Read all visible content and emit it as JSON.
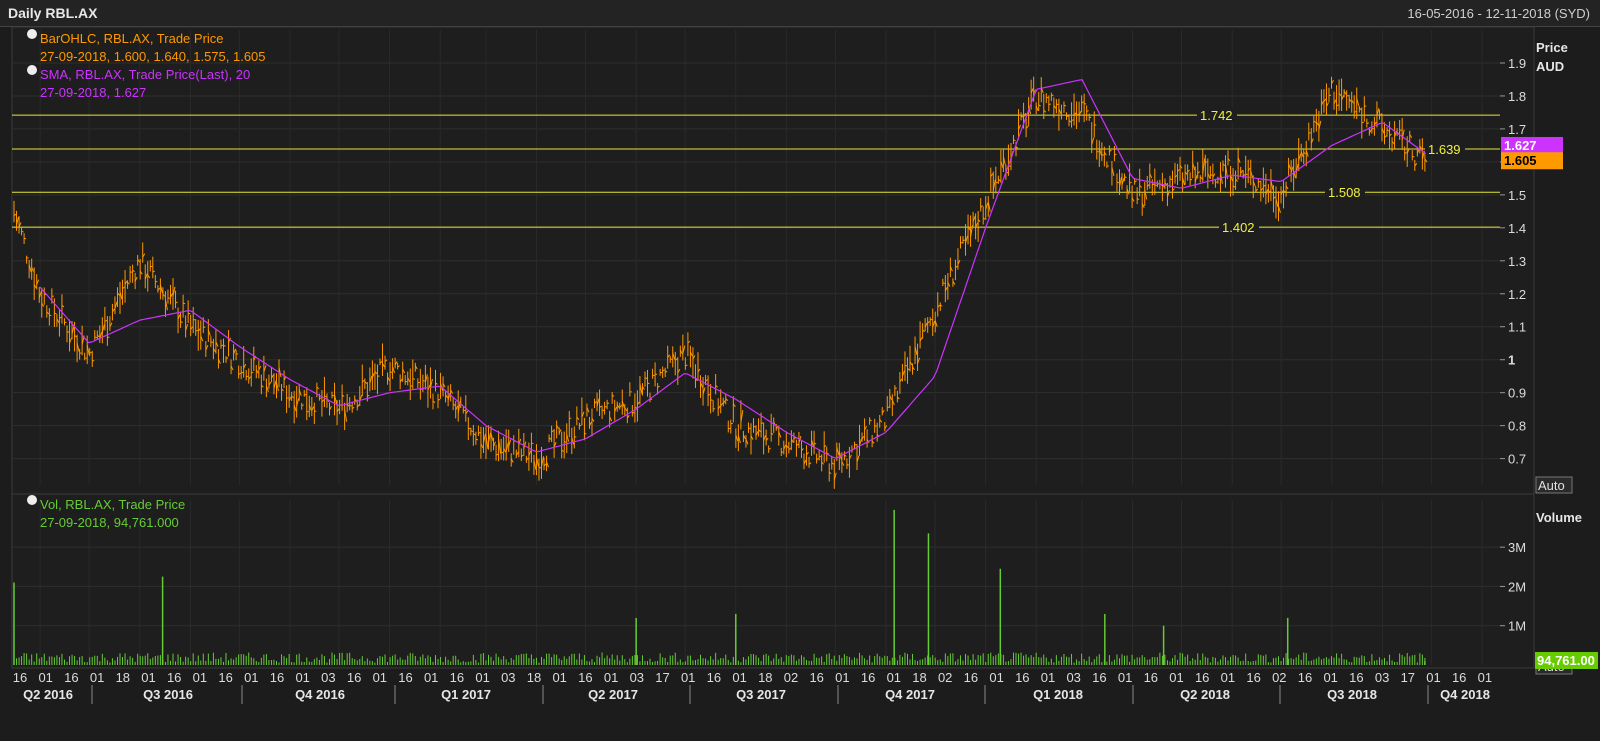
{
  "header": {
    "title": "Daily RBL.AX",
    "date_range": "16-05-2016 - 12-11-2018 (SYD)"
  },
  "price_panel": {
    "unit_label_1": "Price",
    "unit_label_2": "AUD",
    "auto_label": "Auto",
    "legend": [
      {
        "line1": "BarOHLC, RBL.AX, Trade Price",
        "line2": "27-09-2018, 1.600, 1.640, 1.575, 1.605",
        "color": "#ff9900"
      },
      {
        "line1": "SMA, RBL.AX, Trade Price(Last),  20",
        "line2": "27-09-2018, 1.627",
        "color": "#cc33ff"
      }
    ],
    "y_ticks": [
      "0.7",
      "0.8",
      "0.9",
      "1",
      "1.1",
      "1.2",
      "1.3",
      "1.4",
      "1.5",
      "1.6",
      "1.7",
      "1.8",
      "1.9"
    ],
    "horizontal_levels": [
      {
        "value": 1.742,
        "label": "1.742"
      },
      {
        "value": 1.639,
        "label": "1.639"
      },
      {
        "value": 1.508,
        "label": "1.508"
      },
      {
        "value": 1.402,
        "label": "1.402"
      }
    ],
    "last_price_badges": [
      {
        "label": "1.627",
        "color": "#cc33ff"
      },
      {
        "label": "1.605",
        "color": "#ff9900"
      }
    ]
  },
  "volume_panel": {
    "unit_label": "Volume",
    "y_ticks": [
      "1M",
      "2M",
      "3M"
    ],
    "legend": {
      "line1": "Vol, RBL.AX, Trade Price",
      "line2": "27-09-2018, 94,761.000",
      "color": "#66cc33"
    },
    "last_badge": "94,761.00",
    "auto_label": "Auto"
  },
  "x_axis": {
    "day_ticks": [
      "16",
      "01",
      "16",
      "01",
      "18",
      "01",
      "16",
      "01",
      "16",
      "01",
      "16",
      "01",
      "03",
      "16",
      "01",
      "16",
      "01",
      "16",
      "01",
      "03",
      "18",
      "01",
      "16",
      "01",
      "03",
      "17",
      "01",
      "16",
      "01",
      "18",
      "02",
      "16",
      "01",
      "16",
      "01",
      "18",
      "02",
      "16",
      "01",
      "16",
      "01",
      "03",
      "16",
      "01",
      "16",
      "01",
      "16",
      "01",
      "16",
      "02",
      "16",
      "01",
      "16",
      "03",
      "17",
      "01",
      "16",
      "01"
    ],
    "quarters": [
      "Q2 2016",
      "Q3 2016",
      "Q4 2016",
      "Q1 2017",
      "Q2 2017",
      "Q3 2017",
      "Q4 2017",
      "Q1 2018",
      "Q2 2018",
      "Q3 2018",
      "Q4 2018"
    ]
  },
  "chart_data": [
    {
      "type": "line",
      "title": "Daily RBL.AX",
      "ylabel": "Price AUD",
      "x": [
        "2016-05-16",
        "2016-06-01",
        "2016-07-01",
        "2016-08-01",
        "2016-09-01",
        "2016-10-01",
        "2016-11-01",
        "2016-12-01",
        "2017-01-01",
        "2017-02-01",
        "2017-03-01",
        "2017-04-01",
        "2017-05-01",
        "2017-06-01",
        "2017-07-01",
        "2017-08-01",
        "2017-09-01",
        "2017-10-01",
        "2017-11-01",
        "2017-12-01",
        "2018-01-01",
        "2018-02-01",
        "2018-03-01",
        "2018-04-01",
        "2018-05-01",
        "2018-06-01",
        "2018-07-01",
        "2018-08-01",
        "2018-09-01",
        "2018-09-27"
      ],
      "series": [
        {
          "name": "BarOHLC, RBL.AX, Trade Price",
          "values": [
            1.45,
            1.2,
            1.02,
            1.3,
            1.1,
            1.0,
            0.9,
            0.85,
            0.98,
            0.9,
            0.75,
            0.7,
            0.82,
            0.88,
            1.02,
            0.8,
            0.75,
            0.68,
            0.82,
            1.15,
            1.48,
            1.8,
            1.75,
            1.5,
            1.55,
            1.58,
            1.5,
            1.82,
            1.7,
            1.605
          ]
        },
        {
          "name": "SMA, RBL.AX, Trade Price(Last),  20",
          "values": [
            null,
            1.22,
            1.05,
            1.12,
            1.15,
            1.04,
            0.94,
            0.86,
            0.9,
            0.92,
            0.8,
            0.72,
            0.76,
            0.85,
            0.96,
            0.88,
            0.78,
            0.7,
            0.78,
            0.95,
            1.4,
            1.82,
            1.85,
            1.55,
            1.52,
            1.56,
            1.54,
            1.65,
            1.72,
            1.627
          ]
        }
      ],
      "ylim": [
        0.62,
        2.0
      ],
      "horizontal_levels": [
        1.742,
        1.639,
        1.508,
        1.402
      ],
      "grid": true
    },
    {
      "type": "bar",
      "title": "Vol, RBL.AX, Trade Price",
      "ylabel": "Volume",
      "x": [
        "2016-05-16",
        "2016-08-15",
        "2017-06-01",
        "2017-08-01",
        "2017-11-06",
        "2017-11-27",
        "2018-01-10",
        "2018-03-15",
        "2018-04-20",
        "2018-07-05",
        "2018-09-27"
      ],
      "values": [
        2100000,
        2250000,
        1200000,
        1300000,
        3950000,
        3350000,
        2450000,
        1300000,
        1000000,
        1200000,
        94761
      ],
      "ylim": [
        0,
        4200000
      ],
      "grid": true
    }
  ]
}
